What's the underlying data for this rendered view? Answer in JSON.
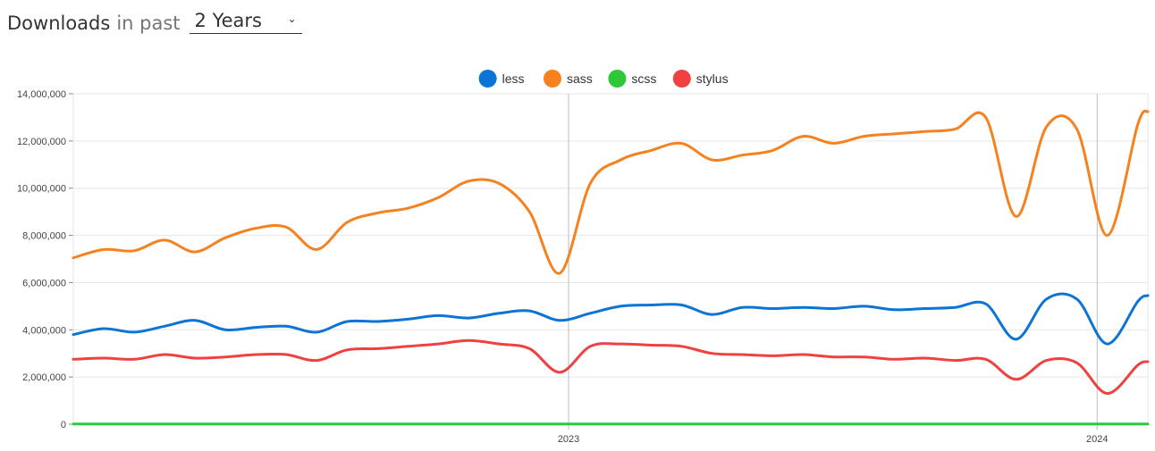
{
  "header": {
    "title": "Downloads",
    "subtitle": "in past",
    "period_value": "2 Years"
  },
  "chart_data": {
    "type": "line",
    "title": "",
    "xlabel": "",
    "ylabel": "",
    "ylim": [
      0,
      14000000
    ],
    "yticks": [
      0,
      2000000,
      4000000,
      6000000,
      8000000,
      10000000,
      12000000,
      14000000
    ],
    "ytick_labels": [
      "0",
      "2,000,000",
      "4,000,000",
      "6,000,000",
      "8,000,000",
      "10,000,000",
      "12,000,000",
      "14,000,000"
    ],
    "x_start": "2022-01-24",
    "x_end": "2024-02-05",
    "xticks": [
      "2023-01-01",
      "2024-01-01"
    ],
    "xtick_labels": [
      "2023",
      "2024"
    ],
    "grid": true,
    "legend_position": "top-center",
    "x": [
      "2022-01-24",
      "2022-02-14",
      "2022-03-07",
      "2022-03-28",
      "2022-04-18",
      "2022-05-09",
      "2022-05-30",
      "2022-06-20",
      "2022-07-11",
      "2022-08-01",
      "2022-08-22",
      "2022-09-12",
      "2022-10-03",
      "2022-10-24",
      "2022-11-14",
      "2022-12-05",
      "2022-12-26",
      "2023-01-16",
      "2023-02-06",
      "2023-02-27",
      "2023-03-20",
      "2023-04-10",
      "2023-05-01",
      "2023-05-22",
      "2023-06-12",
      "2023-07-03",
      "2023-07-24",
      "2023-08-14",
      "2023-09-04",
      "2023-09-25",
      "2023-10-16",
      "2023-11-06",
      "2023-11-27",
      "2023-12-18",
      "2024-01-08",
      "2024-01-29",
      "2024-02-05"
    ],
    "series": [
      {
        "name": "less",
        "color": "#0b74d4",
        "values": [
          3800000,
          4050000,
          3900000,
          4150000,
          4400000,
          4000000,
          4100000,
          4150000,
          3900000,
          4350000,
          4350000,
          4450000,
          4600000,
          4500000,
          4700000,
          4800000,
          4400000,
          4700000,
          5000000,
          5050000,
          5050000,
          4650000,
          4950000,
          4900000,
          4950000,
          4900000,
          5000000,
          4850000,
          4900000,
          4950000,
          5100000,
          3600000,
          5300000,
          5300000,
          3400000,
          5200000,
          5450000
        ]
      },
      {
        "name": "sass",
        "color": "#f5821f",
        "values": [
          7050000,
          7400000,
          7350000,
          7800000,
          7300000,
          7900000,
          8300000,
          8350000,
          7400000,
          8550000,
          8950000,
          9150000,
          9600000,
          10300000,
          10200000,
          9000000,
          6400000,
          10200000,
          11200000,
          11600000,
          11900000,
          11200000,
          11400000,
          11600000,
          12200000,
          11900000,
          12200000,
          12300000,
          12400000,
          12500000,
          13000000,
          8800000,
          12600000,
          12500000,
          8000000,
          12700000,
          13250000
        ]
      },
      {
        "name": "scss",
        "color": "#2ec839",
        "values": [
          10000,
          10000,
          10000,
          10000,
          10000,
          10000,
          10000,
          10000,
          10000,
          10000,
          10000,
          10000,
          10000,
          10000,
          10000,
          10000,
          10000,
          10000,
          10000,
          10000,
          10000,
          10000,
          10000,
          10000,
          10000,
          10000,
          10000,
          10000,
          10000,
          10000,
          10000,
          10000,
          10000,
          10000,
          10000,
          10000,
          10000
        ]
      },
      {
        "name": "stylus",
        "color": "#f0403f",
        "values": [
          2750000,
          2800000,
          2750000,
          2950000,
          2800000,
          2850000,
          2950000,
          2950000,
          2700000,
          3150000,
          3200000,
          3300000,
          3400000,
          3550000,
          3400000,
          3200000,
          2200000,
          3300000,
          3400000,
          3350000,
          3300000,
          3000000,
          2950000,
          2900000,
          2950000,
          2850000,
          2850000,
          2750000,
          2800000,
          2700000,
          2750000,
          1900000,
          2700000,
          2600000,
          1300000,
          2500000,
          2650000
        ]
      }
    ]
  }
}
